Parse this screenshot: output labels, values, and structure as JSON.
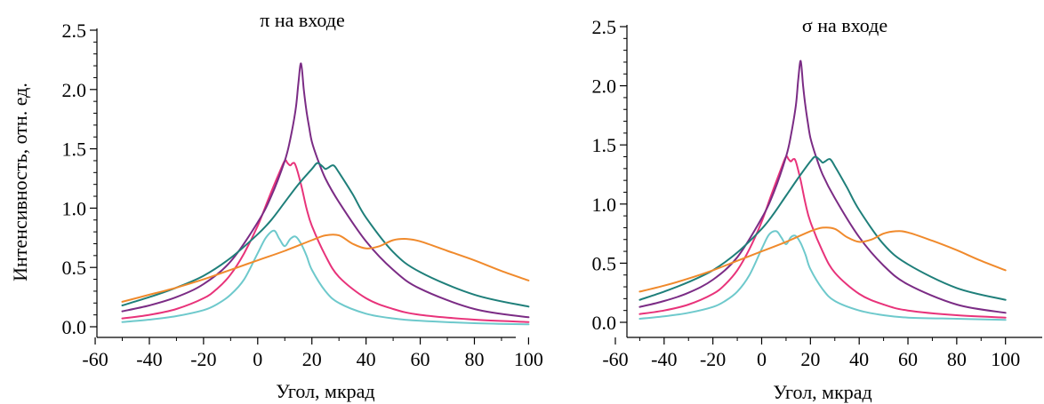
{
  "ylabel_shared": "Интенсивность, отн. ед.",
  "chart_data": [
    {
      "type": "line",
      "title_symbol": "π",
      "title_text": "на входе",
      "xlabel": "Угол, мкрад",
      "ylabel": "Интенсивность, отн. ед.",
      "xlim": [
        -65,
        112
      ],
      "ylim": [
        -0.05,
        2.5
      ],
      "xticks": [
        -60,
        -40,
        -20,
        0,
        20,
        40,
        60,
        80,
        100
      ],
      "xtick_labels": [
        "-60",
        "-40",
        "-20",
        "0",
        "20",
        "40",
        "60",
        "80",
        "100"
      ],
      "yticks": [
        0.0,
        0.5,
        1.0,
        1.5,
        2.0,
        2.5
      ],
      "ytick_labels": [
        "0.0",
        "0.5",
        "1.0",
        "1.5",
        "2.0",
        "2.5"
      ],
      "grid": false,
      "series": [
        {
          "color": "#6ec9cc",
          "x": [
            -50,
            -40,
            -30,
            -20,
            -15,
            -10,
            -5,
            0,
            3,
            6,
            8,
            10,
            12,
            14,
            16,
            18,
            20,
            25,
            30,
            40,
            50,
            60,
            80,
            100
          ],
          "y": [
            0.04,
            0.06,
            0.09,
            0.14,
            0.19,
            0.27,
            0.4,
            0.62,
            0.75,
            0.81,
            0.74,
            0.68,
            0.74,
            0.76,
            0.7,
            0.6,
            0.48,
            0.3,
            0.2,
            0.11,
            0.07,
            0.05,
            0.03,
            0.02
          ]
        },
        {
          "color": "#e8337a",
          "x": [
            -50,
            -40,
            -30,
            -20,
            -15,
            -10,
            -5,
            0,
            4,
            8,
            10,
            11,
            12,
            13,
            14,
            16,
            18,
            20,
            25,
            30,
            40,
            50,
            60,
            80,
            100
          ],
          "y": [
            0.07,
            0.1,
            0.15,
            0.24,
            0.32,
            0.44,
            0.62,
            0.85,
            1.08,
            1.3,
            1.4,
            1.38,
            1.36,
            1.38,
            1.36,
            1.2,
            1.0,
            0.85,
            0.6,
            0.42,
            0.24,
            0.15,
            0.1,
            0.06,
            0.04
          ]
        },
        {
          "color": "#7b2c85",
          "x": [
            -50,
            -40,
            -30,
            -20,
            -10,
            0,
            5,
            10,
            12,
            14,
            15,
            16,
            17,
            18,
            19,
            20,
            22,
            25,
            30,
            40,
            50,
            60,
            80,
            100
          ],
          "y": [
            0.13,
            0.18,
            0.25,
            0.36,
            0.55,
            0.88,
            1.1,
            1.4,
            1.58,
            1.83,
            2.05,
            2.22,
            2.0,
            1.82,
            1.68,
            1.56,
            1.42,
            1.25,
            1.05,
            0.72,
            0.48,
            0.32,
            0.15,
            0.08
          ]
        },
        {
          "color": "#1f7f7a",
          "x": [
            -50,
            -40,
            -30,
            -20,
            -10,
            0,
            5,
            10,
            15,
            20,
            22,
            24,
            25,
            26,
            28,
            30,
            35,
            40,
            50,
            60,
            80,
            100
          ],
          "y": [
            0.18,
            0.25,
            0.33,
            0.43,
            0.58,
            0.78,
            0.9,
            1.05,
            1.2,
            1.33,
            1.38,
            1.35,
            1.33,
            1.34,
            1.36,
            1.3,
            1.12,
            0.92,
            0.63,
            0.46,
            0.27,
            0.17
          ]
        },
        {
          "color": "#f08a2c",
          "x": [
            -50,
            -40,
            -30,
            -20,
            -10,
            0,
            10,
            20,
            25,
            30,
            35,
            40,
            45,
            50,
            55,
            60,
            70,
            80,
            90,
            100
          ],
          "y": [
            0.21,
            0.27,
            0.33,
            0.4,
            0.48,
            0.56,
            0.64,
            0.73,
            0.77,
            0.77,
            0.7,
            0.66,
            0.68,
            0.73,
            0.74,
            0.72,
            0.64,
            0.56,
            0.47,
            0.39
          ]
        }
      ]
    },
    {
      "type": "line",
      "title_symbol": "σ",
      "title_text": "на входе",
      "xlabel": "Угол, мкрад",
      "ylabel": "",
      "xlim": [
        -65,
        112
      ],
      "ylim": [
        -0.05,
        2.5
      ],
      "xticks": [
        -60,
        -40,
        -20,
        0,
        20,
        40,
        60,
        80,
        100
      ],
      "xtick_labels": [
        "-60",
        "-40",
        "-20",
        "0",
        "20",
        "40",
        "60",
        "80",
        "100"
      ],
      "yticks": [
        0.0,
        0.5,
        1.0,
        1.5,
        2.0,
        2.5
      ],
      "ytick_labels": [
        "0.0",
        "0.5",
        "1.0",
        "1.5",
        "2.0",
        "2.5"
      ],
      "grid": false,
      "series": [
        {
          "color": "#6ec9cc",
          "x": [
            -50,
            -40,
            -30,
            -20,
            -15,
            -10,
            -5,
            0,
            3,
            6,
            8,
            10,
            12,
            14,
            16,
            18,
            20,
            25,
            30,
            40,
            50,
            60,
            80,
            100
          ],
          "y": [
            0.03,
            0.05,
            0.08,
            0.13,
            0.18,
            0.26,
            0.4,
            0.62,
            0.74,
            0.77,
            0.72,
            0.66,
            0.72,
            0.73,
            0.67,
            0.57,
            0.45,
            0.28,
            0.18,
            0.1,
            0.06,
            0.04,
            0.03,
            0.02
          ]
        },
        {
          "color": "#e8337a",
          "x": [
            -50,
            -40,
            -30,
            -20,
            -15,
            -10,
            -5,
            0,
            4,
            8,
            10,
            11,
            12,
            13,
            14,
            16,
            18,
            20,
            25,
            30,
            40,
            50,
            60,
            80,
            100
          ],
          "y": [
            0.07,
            0.1,
            0.15,
            0.24,
            0.32,
            0.44,
            0.62,
            0.85,
            1.08,
            1.3,
            1.4,
            1.38,
            1.36,
            1.38,
            1.36,
            1.2,
            1.0,
            0.85,
            0.6,
            0.42,
            0.24,
            0.15,
            0.1,
            0.06,
            0.04
          ]
        },
        {
          "color": "#7b2c85",
          "x": [
            -50,
            -40,
            -30,
            -20,
            -10,
            0,
            5,
            10,
            12,
            14,
            15,
            16,
            17,
            18,
            19,
            20,
            22,
            25,
            30,
            40,
            50,
            60,
            80,
            100
          ],
          "y": [
            0.13,
            0.18,
            0.25,
            0.36,
            0.55,
            0.88,
            1.1,
            1.4,
            1.58,
            1.83,
            2.05,
            2.21,
            2.0,
            1.82,
            1.68,
            1.56,
            1.42,
            1.25,
            1.05,
            0.72,
            0.48,
            0.32,
            0.15,
            0.08
          ]
        },
        {
          "color": "#1f7f7a",
          "x": [
            -50,
            -40,
            -30,
            -20,
            -10,
            0,
            5,
            10,
            15,
            20,
            22,
            24,
            25,
            26,
            28,
            30,
            35,
            40,
            50,
            60,
            80,
            100
          ],
          "y": [
            0.19,
            0.26,
            0.34,
            0.44,
            0.59,
            0.79,
            0.92,
            1.07,
            1.22,
            1.36,
            1.4,
            1.37,
            1.35,
            1.36,
            1.38,
            1.32,
            1.14,
            0.95,
            0.66,
            0.49,
            0.29,
            0.19
          ]
        },
        {
          "color": "#f08a2c",
          "x": [
            -50,
            -40,
            -30,
            -20,
            -10,
            0,
            10,
            20,
            25,
            30,
            35,
            40,
            45,
            50,
            55,
            60,
            70,
            80,
            90,
            100
          ],
          "y": [
            0.26,
            0.31,
            0.37,
            0.44,
            0.52,
            0.6,
            0.68,
            0.77,
            0.8,
            0.79,
            0.72,
            0.68,
            0.7,
            0.75,
            0.77,
            0.76,
            0.69,
            0.61,
            0.52,
            0.44
          ]
        }
      ]
    }
  ]
}
